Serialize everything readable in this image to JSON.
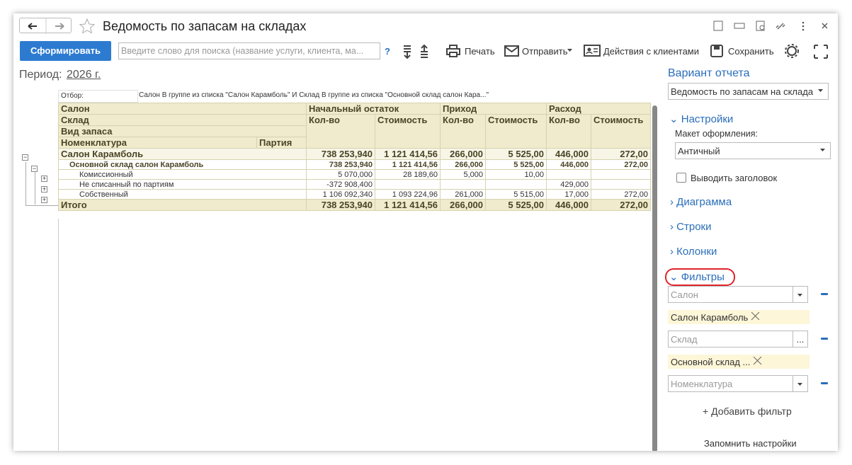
{
  "header": {
    "title": "Ведомость по запасам на складах"
  },
  "toolbar": {
    "generate": "Сформировать",
    "search_placeholder": "Введите слово для поиска (название услуги, клиента, ма...",
    "help": "?",
    "print": "Печать",
    "send": "Отправить",
    "clients": "Действия с клиентами",
    "save": "Сохранить"
  },
  "period": {
    "label": "Период:",
    "value": "2026 г."
  },
  "filter": {
    "label": "Отбор:",
    "text": "Салон В группе из списка \"Салон Карамболь\" И Склад В группе из списка \"Основной склад салон Кара...\""
  },
  "table": {
    "group_labels": [
      "Салон",
      "Склад",
      "Вид запаса",
      "Номенклатура"
    ],
    "party": "Партия",
    "groups": [
      "Начальный остаток",
      "Приход",
      "Расход"
    ],
    "columns": [
      "Кол-во",
      "Стоимость",
      "Кол-во",
      "Стоимость",
      "Кол-во",
      "Стоимость"
    ],
    "rows": [
      {
        "label": "Салон Карамболь",
        "values": [
          "738 253,940",
          "1 121 414,56",
          "266,000",
          "5 525,00",
          "446,000",
          "272,00"
        ]
      },
      {
        "label": "Основной склад салон Карамболь",
        "values": [
          "738 253,940",
          "1 121 414,56",
          "266,000",
          "5 525,00",
          "446,000",
          "272,00"
        ]
      },
      {
        "label": "Комиссионный",
        "values": [
          "5 070,000",
          "28 189,60",
          "5,000",
          "10,00",
          null,
          null
        ]
      },
      {
        "label": "Не списанный по партиям",
        "values": [
          "-372 908,400",
          null,
          null,
          null,
          "429,000",
          null
        ]
      },
      {
        "label": "Собственный",
        "values": [
          "1 106 092,340",
          "1 093 224,96",
          "261,000",
          "5 515,00",
          "17,000",
          "272,00"
        ]
      }
    ],
    "total": {
      "label": "Итого",
      "values": [
        "738 253,940",
        "1 121 414,56",
        "266,000",
        "5 525,00",
        "446,000",
        "272,00"
      ]
    }
  },
  "panel": {
    "variant_label": "Вариант отчета",
    "variant_value": "Ведомость по запасам на склада",
    "settings": "Настройки",
    "layout_label": "Макет оформления:",
    "layout_value": "Античный",
    "show_header": "Выводить заголовок",
    "sections": [
      "Диаграмма",
      "Строки",
      "Колонки"
    ],
    "filters": "Фильтры",
    "filter_fields": [
      {
        "placeholder": "Салон",
        "tag": "Салон Карамболь"
      },
      {
        "placeholder": "Склад",
        "tag": "Основной склад ..."
      },
      {
        "placeholder": "Номенклатура"
      }
    ],
    "select_button": "...",
    "add_filter": "+ Добавить фильтр",
    "remember": "Запомнить настройки"
  }
}
